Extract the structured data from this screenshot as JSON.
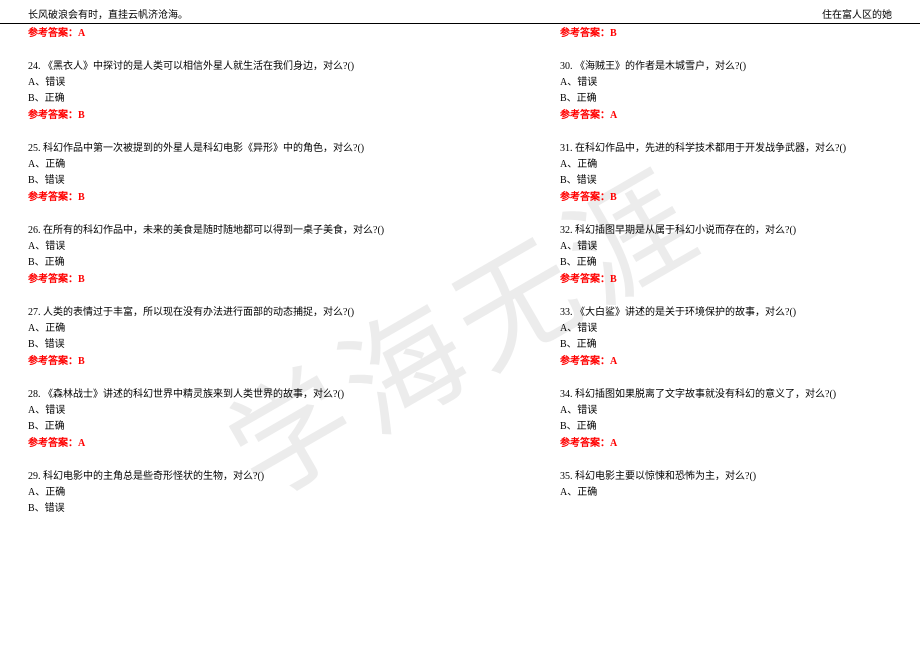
{
  "header": {
    "left": "长风破浪会有时，直挂云帆济沧海。",
    "right": "住在富人区的她"
  },
  "watermark": "学海无涯",
  "answer_label": "参考答案：",
  "left_column": {
    "top_answer": "A",
    "questions": [
      {
        "num": "24.",
        "text": "《黑衣人》中探讨的是人类可以相信外星人就生活在我们身边，对么?()",
        "opt_a": "A、错误",
        "opt_b": "B、正确",
        "answer": "B"
      },
      {
        "num": "25.",
        "text": "科幻作品中第一次被提到的外星人是科幻电影《异形》中的角色，对么?()",
        "opt_a": "A、正确",
        "opt_b": "B、错误",
        "answer": "B"
      },
      {
        "num": "26.",
        "text": "在所有的科幻作品中，未来的美食是随时随地都可以得到一桌子美食，对么?()",
        "opt_a": "A、错误",
        "opt_b": "B、正确",
        "answer": "B"
      },
      {
        "num": "27.",
        "text": "人类的表情过于丰富，所以现在没有办法进行面部的动态捕捉，对么?()",
        "opt_a": "A、正确",
        "opt_b": "B、错误",
        "answer": "B"
      },
      {
        "num": "28.",
        "text": "《森林战士》讲述的科幻世界中精灵族来到人类世界的故事，对么?()",
        "opt_a": "A、错误",
        "opt_b": "B、正确",
        "answer": "A"
      },
      {
        "num": "29.",
        "text": "科幻电影中的主角总是些奇形怪状的生物，对么?()",
        "opt_a": "A、正确",
        "opt_b": "B、错误",
        "answer": ""
      }
    ]
  },
  "right_column": {
    "top_answer": "B",
    "questions": [
      {
        "num": "30.",
        "text": "《海贼王》的作者是木城雪户，对么?()",
        "opt_a": "A、错误",
        "opt_b": "B、正确",
        "answer": "A"
      },
      {
        "num": "31.",
        "text": "在科幻作品中，先进的科学技术都用于开发战争武器，对么?()",
        "opt_a": "A、正确",
        "opt_b": "B、错误",
        "answer": "B"
      },
      {
        "num": "32.",
        "text": "科幻插图早期是从属于科幻小说而存在的，对么?()",
        "opt_a": "A、错误",
        "opt_b": "B、正确",
        "answer": "B"
      },
      {
        "num": "33.",
        "text": "《大白鲨》讲述的是关于环境保护的故事，对么?()",
        "opt_a": "A、错误",
        "opt_b": "B、正确",
        "answer": "A"
      },
      {
        "num": "34.",
        "text": "科幻插图如果脱离了文字故事就没有科幻的意义了，对么?()",
        "opt_a": "A、错误",
        "opt_b": "B、正确",
        "answer": "A"
      },
      {
        "num": "35.",
        "text": "科幻电影主要以惊悚和恐怖为主，对么?()",
        "opt_a": "A、正确",
        "opt_b": "",
        "answer": ""
      }
    ]
  }
}
